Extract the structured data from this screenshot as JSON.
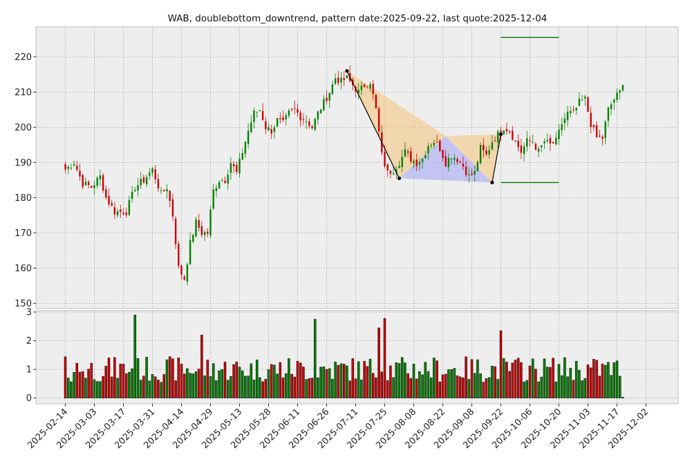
{
  "chart_data": {
    "type": "candlestick",
    "title": "WAB, doublebottom_downtrend, pattern date:2025-09-22, last quote:2025-12-04",
    "x_tick_labels": [
      "2025-02-14",
      "2025-03-03",
      "2025-03-17",
      "2025-03-31",
      "2025-04-14",
      "2025-04-29",
      "2025-05-13",
      "2025-05-28",
      "2025-06-11",
      "2025-06-26",
      "2025-07-11",
      "2025-07-25",
      "2025-08-08",
      "2025-08-22",
      "2025-09-08",
      "2025-09-22",
      "2025-10-06",
      "2025-10-20",
      "2025-11-03",
      "2025-11-17",
      "2025-12-02"
    ],
    "price_axis": {
      "ylim": [
        148.5,
        228.5
      ],
      "ticks": [
        150,
        160,
        170,
        180,
        190,
        200,
        210,
        220
      ]
    },
    "volume_axis": {
      "ylim": [
        -0.2,
        3.05
      ],
      "ticks": [
        0,
        1,
        2,
        3
      ]
    },
    "grid": true,
    "colors": {
      "up": "#008000",
      "down": "#cc0000",
      "pattern_line": "#000000",
      "fill_top": "#f5c98a",
      "fill_bottom": "#a9a9f5",
      "target_line": "#007700",
      "panel_bg": "#eeeeee"
    },
    "price_anchors": [
      {
        "d": 0,
        "c": 188
      },
      {
        "d": 3,
        "c": 190
      },
      {
        "d": 6,
        "c": 184
      },
      {
        "d": 9,
        "c": 183
      },
      {
        "d": 12,
        "c": 186
      },
      {
        "d": 14,
        "c": 180
      },
      {
        "d": 17,
        "c": 176
      },
      {
        "d": 21,
        "c": 176
      },
      {
        "d": 24,
        "c": 183
      },
      {
        "d": 27,
        "c": 185
      },
      {
        "d": 30,
        "c": 188
      },
      {
        "d": 33,
        "c": 181
      },
      {
        "d": 35,
        "c": 183
      },
      {
        "d": 37,
        "c": 175
      },
      {
        "d": 39,
        "c": 160
      },
      {
        "d": 41,
        "c": 157
      },
      {
        "d": 43,
        "c": 167
      },
      {
        "d": 45,
        "c": 173
      },
      {
        "d": 47,
        "c": 170
      },
      {
        "d": 49,
        "c": 170
      },
      {
        "d": 51,
        "c": 182
      },
      {
        "d": 53,
        "c": 185
      },
      {
        "d": 55,
        "c": 185
      },
      {
        "d": 57,
        "c": 190
      },
      {
        "d": 59,
        "c": 187
      },
      {
        "d": 61,
        "c": 193
      },
      {
        "d": 63,
        "c": 199
      },
      {
        "d": 65,
        "c": 204
      },
      {
        "d": 67,
        "c": 205
      },
      {
        "d": 69,
        "c": 200
      },
      {
        "d": 71,
        "c": 199
      },
      {
        "d": 73,
        "c": 202
      },
      {
        "d": 75,
        "c": 201
      },
      {
        "d": 77,
        "c": 204
      },
      {
        "d": 79,
        "c": 205
      },
      {
        "d": 81,
        "c": 203
      },
      {
        "d": 83,
        "c": 202
      },
      {
        "d": 85,
        "c": 200
      },
      {
        "d": 87,
        "c": 204
      },
      {
        "d": 89,
        "c": 207
      },
      {
        "d": 91,
        "c": 210
      },
      {
        "d": 93,
        "c": 214
      },
      {
        "d": 95,
        "c": 213
      },
      {
        "d": 97,
        "c": 214
      },
      {
        "d": 99,
        "c": 212
      },
      {
        "d": 101,
        "c": 210
      },
      {
        "d": 103,
        "c": 212
      },
      {
        "d": 105,
        "c": 213
      },
      {
        "d": 107,
        "c": 205
      },
      {
        "d": 109,
        "c": 192
      },
      {
        "d": 111,
        "c": 187
      },
      {
        "d": 113,
        "c": 188
      },
      {
        "d": 115,
        "c": 190
      },
      {
        "d": 117,
        "c": 193
      },
      {
        "d": 119,
        "c": 191
      },
      {
        "d": 121,
        "c": 190
      },
      {
        "d": 123,
        "c": 191
      },
      {
        "d": 125,
        "c": 195
      },
      {
        "d": 127,
        "c": 196
      },
      {
        "d": 129,
        "c": 194
      },
      {
        "d": 131,
        "c": 190
      },
      {
        "d": 133,
        "c": 192
      },
      {
        "d": 135,
        "c": 191
      },
      {
        "d": 137,
        "c": 189
      },
      {
        "d": 139,
        "c": 186
      },
      {
        "d": 141,
        "c": 187
      },
      {
        "d": 143,
        "c": 194
      },
      {
        "d": 145,
        "c": 192
      },
      {
        "d": 147,
        "c": 196
      },
      {
        "d": 149,
        "c": 198
      },
      {
        "d": 151,
        "c": 200
      },
      {
        "d": 153,
        "c": 199
      },
      {
        "d": 155,
        "c": 196
      },
      {
        "d": 157,
        "c": 193
      },
      {
        "d": 159,
        "c": 196
      },
      {
        "d": 161,
        "c": 196
      },
      {
        "d": 163,
        "c": 193
      },
      {
        "d": 165,
        "c": 196
      },
      {
        "d": 167,
        "c": 195
      },
      {
        "d": 169,
        "c": 196
      },
      {
        "d": 171,
        "c": 201
      },
      {
        "d": 173,
        "c": 204
      },
      {
        "d": 175,
        "c": 204
      },
      {
        "d": 177,
        "c": 207
      },
      {
        "d": 179,
        "c": 208
      },
      {
        "d": 181,
        "c": 201
      },
      {
        "d": 183,
        "c": 197
      },
      {
        "d": 185,
        "c": 197
      },
      {
        "d": 187,
        "c": 205
      },
      {
        "d": 189,
        "c": 208
      },
      {
        "d": 191,
        "c": 210
      },
      {
        "d": 192,
        "c": 213
      }
    ],
    "pattern_points": [
      {
        "d": 97,
        "price": 216
      },
      {
        "d": 115,
        "price": 185.5
      },
      {
        "d": 131,
        "price": 197.5
      },
      {
        "d": 147,
        "price": 184.3
      },
      {
        "d": 150,
        "price": 198
      }
    ],
    "target_lines": [
      {
        "d_start": 150,
        "d_end": 170,
        "price": 225.5
      },
      {
        "d_start": 150,
        "d_end": 170,
        "price": 184.3
      }
    ],
    "volume_seed": 7
  }
}
